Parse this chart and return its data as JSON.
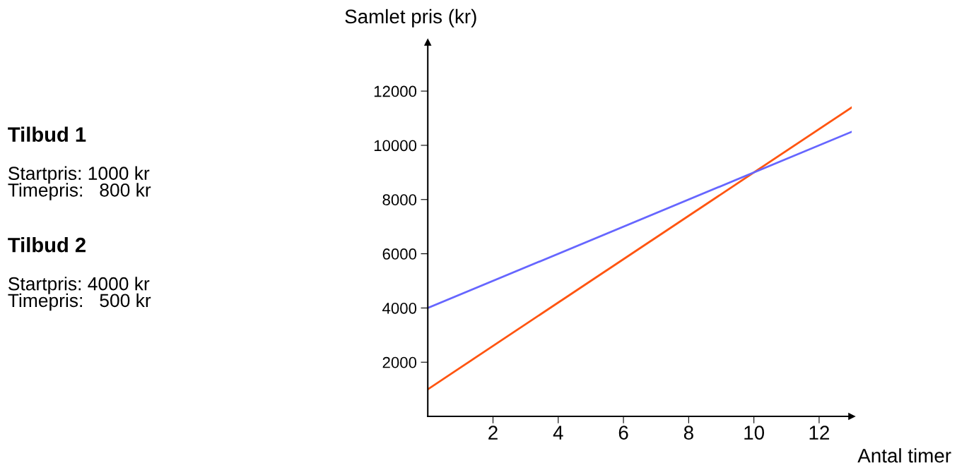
{
  "chart_data": {
    "type": "line",
    "xlabel": "Antal timer",
    "ylabel": "Samlet pris (kr)",
    "x": [
      0,
      13
    ],
    "series": [
      {
        "color": "#ff5511",
        "values": [
          1000,
          11400
        ]
      },
      {
        "color": "#6666ff",
        "values": [
          4000,
          10500
        ]
      }
    ],
    "xlim": [
      0,
      13
    ],
    "ylim": [
      0,
      13800
    ],
    "xticks": [
      2,
      4,
      6,
      8,
      10,
      12
    ],
    "yticks": [
      2000,
      4000,
      6000,
      8000,
      10000,
      12000
    ],
    "grid": false,
    "legend": false,
    "marker": "none",
    "line_style": "solid",
    "annotations": [
      "Tilbud 1",
      "Startpris: 1000 kr\nTimepris:   800 kr",
      "Tilbud 2",
      "Startpris: 4000 kr\nTimepris:   500 kr"
    ]
  }
}
